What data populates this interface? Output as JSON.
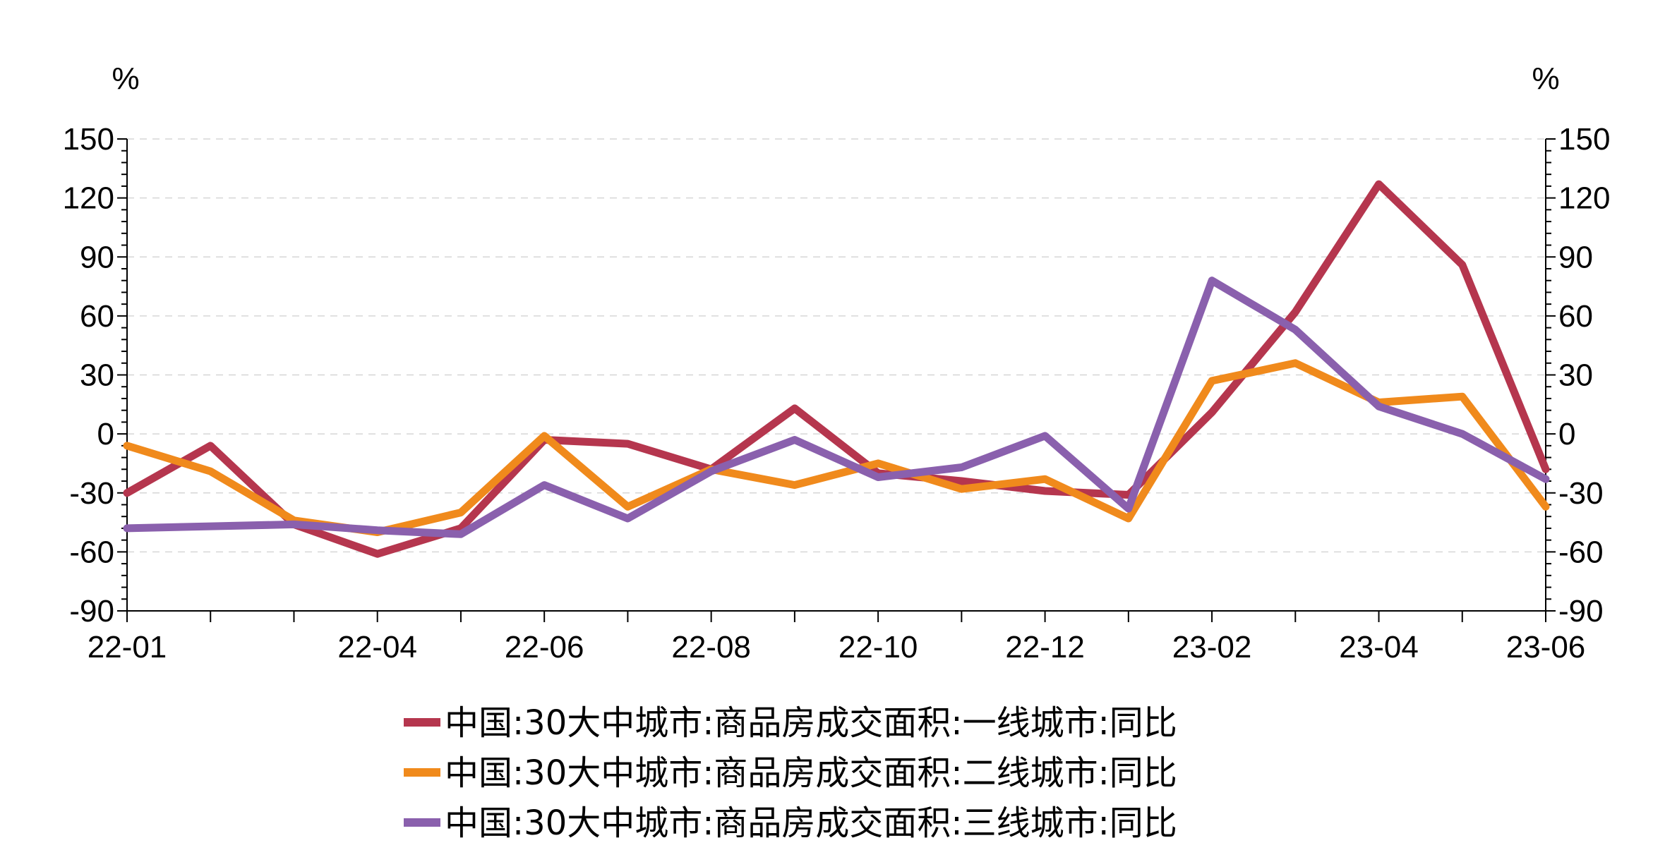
{
  "chart_data": {
    "type": "line",
    "unit_left": "%",
    "unit_right": "%",
    "ylim": [
      -90,
      150
    ],
    "yticks": [
      -90,
      -60,
      -30,
      0,
      30,
      60,
      90,
      120,
      150
    ],
    "x": [
      "22-01",
      "22-02",
      "22-03",
      "22-04",
      "22-05",
      "22-06",
      "22-07",
      "22-08",
      "22-09",
      "22-10",
      "22-11",
      "22-12",
      "23-01",
      "23-02",
      "23-03",
      "23-04",
      "23-05",
      "23-06"
    ],
    "xtick_labels": [
      "22-01",
      "22-04",
      "22-06",
      "22-08",
      "22-10",
      "22-12",
      "23-02",
      "23-04",
      "23-06"
    ],
    "grid": true,
    "legend_position": "bottom",
    "series": [
      {
        "name": "中国:30大中城市:商品房成交面积:一线城市:同比",
        "color": "#b5364e",
        "values": [
          -30,
          -6,
          -46,
          -61,
          -48,
          -3,
          -5,
          -18,
          13,
          -20,
          -24,
          -29,
          -31,
          11,
          62,
          127,
          86,
          -18
        ]
      },
      {
        "name": "中国:30大中城市:商品房成交面积:二线城市:同比",
        "color": "#f08a1c",
        "values": [
          -6,
          -19,
          -44,
          -50,
          -40,
          -1,
          -37,
          -18,
          -26,
          -15,
          -28,
          -23,
          -43,
          27,
          36,
          16,
          19,
          -37
        ]
      },
      {
        "name": "中国:30大中城市:商品房成交面积:三线城市:同比",
        "color": "#8a60ad",
        "values": [
          -48,
          -47,
          -46,
          -49,
          -51,
          -26,
          -43,
          -19,
          -3,
          -22,
          -17,
          -1,
          -38,
          78,
          53,
          14,
          0,
          -23
        ]
      }
    ]
  }
}
